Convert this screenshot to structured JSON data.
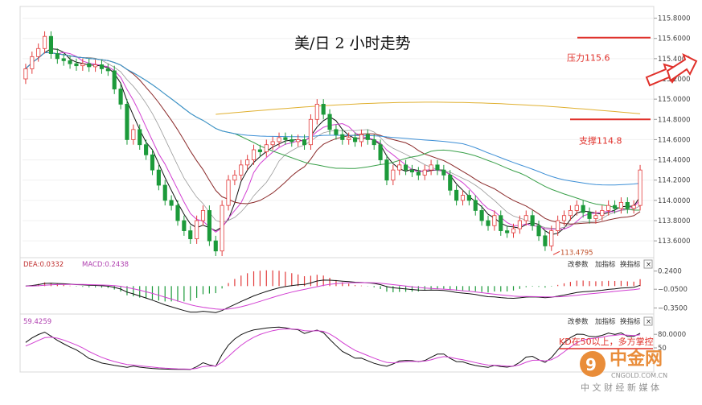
{
  "chart_data": [
    {
      "type": "candlestick",
      "title": "美/日 2 小时走势",
      "ylim": [
        113.45,
        115.9
      ],
      "y_ticks": [
        "115.8000",
        "115.6000",
        "115.4000",
        "115.2000",
        "115.0000",
        "114.8000",
        "114.6000",
        "114.4000",
        "114.2000",
        "114.0000",
        "113.8000",
        "113.6000"
      ],
      "y_tick_values": [
        115.8,
        115.6,
        115.4,
        115.2,
        115.0,
        114.8,
        114.6,
        114.4,
        114.2,
        114.0,
        113.8,
        113.6
      ],
      "resistance": {
        "label": "压力115.6",
        "value": 115.6
      },
      "support": {
        "label": "支撑114.8",
        "value": 114.8
      },
      "low_annotation": {
        "label": "113.4795",
        "value": 113.4795
      },
      "close": [
        115.3,
        115.42,
        115.5,
        115.62,
        115.45,
        115.4,
        115.38,
        115.35,
        115.33,
        115.35,
        115.32,
        115.34,
        115.3,
        115.28,
        115.1,
        114.95,
        114.6,
        114.7,
        114.55,
        114.45,
        114.3,
        114.15,
        114.0,
        113.95,
        113.8,
        113.7,
        113.62,
        113.8,
        113.9,
        113.6,
        113.5,
        113.95,
        114.2,
        114.25,
        114.35,
        114.4,
        114.5,
        114.48,
        114.55,
        114.58,
        114.62,
        114.6,
        114.58,
        114.6,
        114.55,
        114.8,
        114.95,
        114.85,
        114.7,
        114.65,
        114.6,
        114.62,
        114.58,
        114.65,
        114.6,
        114.55,
        114.4,
        114.2,
        114.3,
        114.35,
        114.3,
        114.28,
        114.25,
        114.3,
        114.35,
        114.3,
        114.25,
        114.1,
        114.0,
        114.05,
        114.0,
        113.9,
        113.8,
        113.75,
        113.85,
        113.7,
        113.68,
        113.72,
        113.8,
        113.85,
        113.75,
        113.65,
        113.55,
        113.7,
        113.8,
        113.85,
        113.9,
        113.95,
        113.88,
        113.82,
        113.85,
        113.9,
        113.95,
        113.92,
        113.98,
        113.92,
        113.95,
        114.3
      ],
      "open": [
        115.2,
        115.3,
        115.42,
        115.5,
        115.62,
        115.45,
        115.4,
        115.38,
        115.35,
        115.33,
        115.35,
        115.32,
        115.34,
        115.3,
        115.28,
        115.1,
        114.95,
        114.6,
        114.7,
        114.55,
        114.45,
        114.3,
        114.15,
        114.0,
        113.95,
        113.8,
        113.7,
        113.62,
        113.8,
        113.9,
        113.6,
        113.5,
        113.95,
        114.2,
        114.25,
        114.35,
        114.4,
        114.5,
        114.48,
        114.55,
        114.58,
        114.62,
        114.6,
        114.58,
        114.6,
        114.55,
        114.8,
        114.95,
        114.85,
        114.7,
        114.65,
        114.6,
        114.62,
        114.58,
        114.65,
        114.6,
        114.55,
        114.4,
        114.2,
        114.3,
        114.35,
        114.3,
        114.28,
        114.25,
        114.3,
        114.35,
        114.3,
        114.25,
        114.1,
        114.0,
        114.05,
        114.0,
        113.9,
        113.8,
        113.75,
        113.85,
        113.7,
        113.68,
        113.72,
        113.8,
        113.85,
        113.75,
        113.65,
        113.55,
        113.7,
        113.8,
        113.85,
        113.9,
        113.95,
        113.88,
        113.82,
        113.85,
        113.9,
        113.95,
        113.92,
        113.98,
        113.92,
        113.95
      ]
    },
    {
      "type": "macd",
      "legend_dea": "DEA:0.0332",
      "legend_macd": "MACD:0.2438",
      "ylim": [
        -0.42,
        0.3
      ],
      "y_ticks": [
        "0.2400",
        "−0.0500",
        "−0.3500"
      ],
      "y_tick_values": [
        0.24,
        -0.05,
        -0.35
      ]
    },
    {
      "type": "kd",
      "legend_value": "59.4259",
      "ylim": [
        0,
        100
      ],
      "y_ticks": [
        "80.0000",
        "50"
      ],
      "y_tick_values": [
        80,
        50
      ],
      "annotation": "KD在50以上，多方掌控"
    }
  ],
  "panel_buttons": {
    "change_params": "改参数",
    "add_indicator": "加指标",
    "switch_indicator": "换指标",
    "close": "×"
  },
  "watermark": {
    "brand": "中金网",
    "domain": "CNGOLD.COM.CN",
    "slogan": "中 文 财 经 新 媒 体"
  },
  "colors": {
    "up": "#e23b3b",
    "down": "#1c9a3a",
    "annotation": "#e0302a",
    "ma_blue": "#3d8fd6",
    "ma_green": "#3aa04a",
    "ma_gold": "#e0b030",
    "ma_brown": "#8b2a2a",
    "ma_magenta": "#d23fd2",
    "ma_grey": "#999999"
  }
}
